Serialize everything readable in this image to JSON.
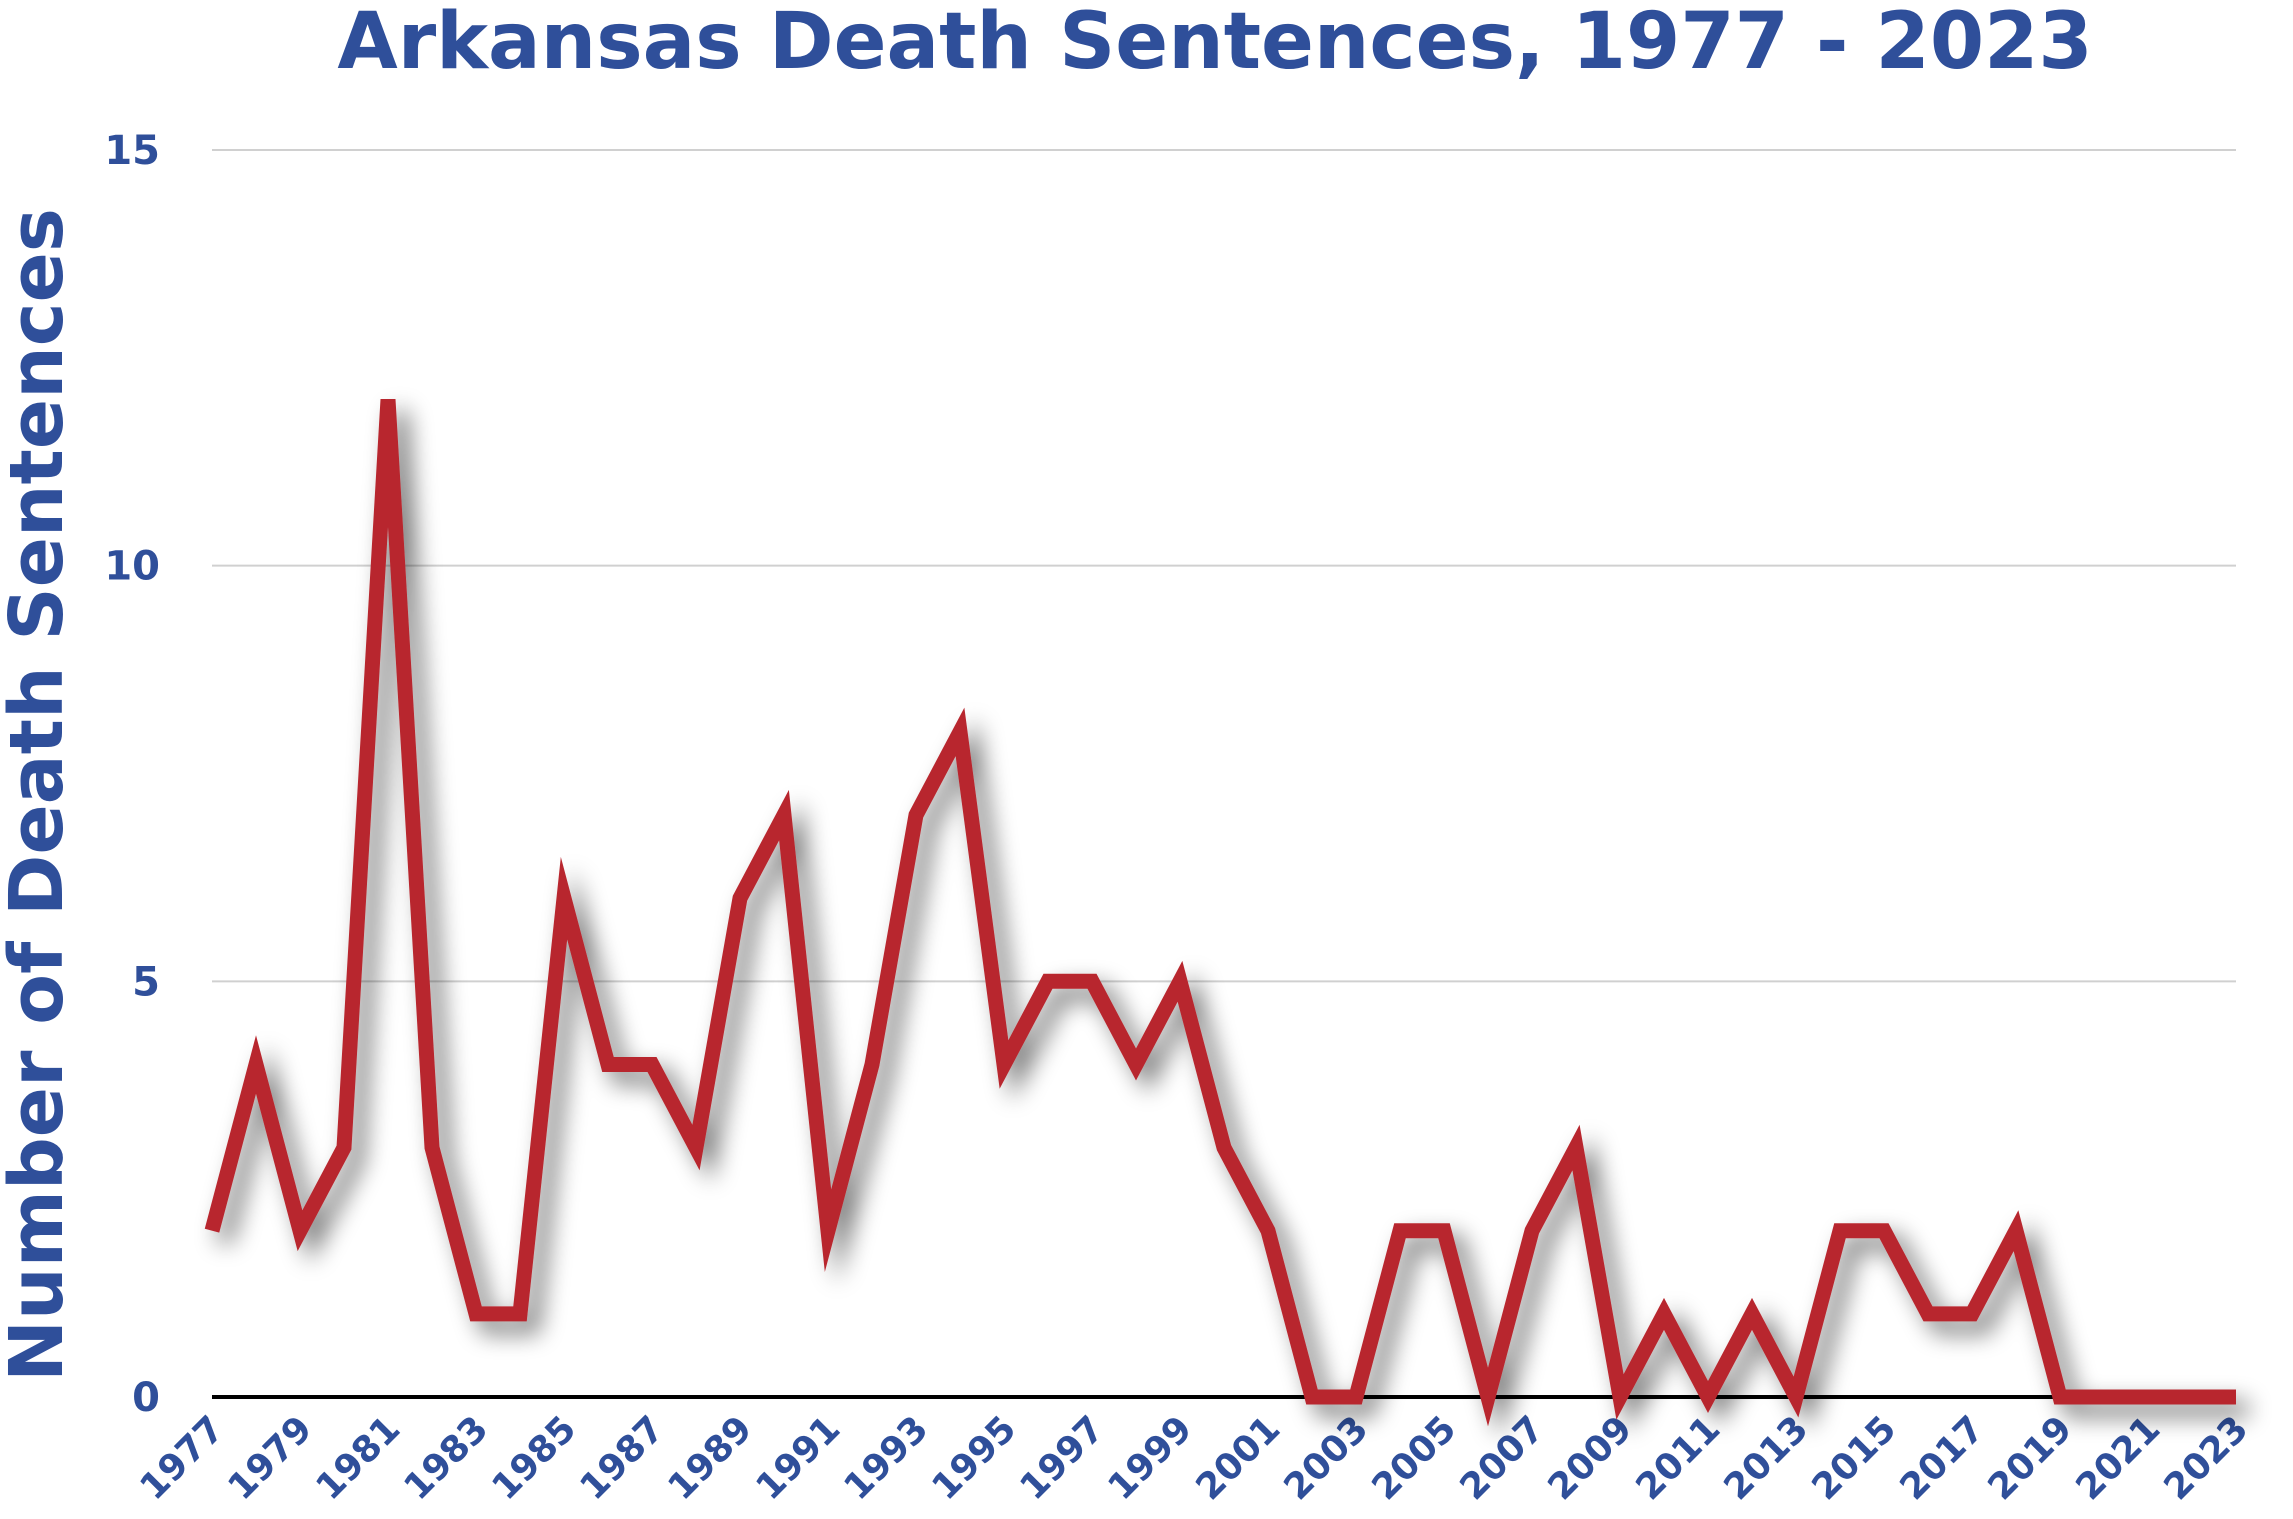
{
  "chart_data": {
    "type": "line",
    "title": "Arkansas Death Sentences, 1977 - 2023",
    "xlabel": "",
    "ylabel": "Number of Death Sentences",
    "ylim": [
      0,
      15
    ],
    "yticks": [
      "0",
      "5",
      "10",
      "15"
    ],
    "grid": true,
    "x": [
      1977,
      1978,
      1979,
      1980,
      1981,
      1982,
      1983,
      1984,
      1985,
      1986,
      1987,
      1988,
      1989,
      1990,
      1991,
      1992,
      1993,
      1994,
      1995,
      1996,
      1997,
      1998,
      1999,
      2000,
      2001,
      2002,
      2003,
      2004,
      2005,
      2006,
      2007,
      2008,
      2009,
      2010,
      2011,
      2012,
      2013,
      2014,
      2015,
      2016,
      2017,
      2018,
      2019,
      2020,
      2021,
      2022,
      2023
    ],
    "xtick_labels": [
      "1977",
      "1979",
      "1981",
      "1983",
      "1985",
      "1987",
      "1989",
      "1991",
      "1993",
      "1995",
      "1997",
      "1999",
      "2001",
      "2003",
      "2005",
      "2007",
      "2009",
      "2011",
      "2013",
      "2015",
      "2017",
      "2019",
      "2021",
      "2023"
    ],
    "series": [
      {
        "name": "",
        "color": "#b8282f",
        "values": [
          2,
          4,
          2,
          3,
          12,
          3,
          1,
          1,
          6,
          4,
          4,
          3,
          6,
          7,
          2,
          4,
          7,
          8,
          4,
          5,
          5,
          4,
          5,
          3,
          2,
          0,
          0,
          2,
          2,
          0,
          2,
          3,
          0,
          1,
          0,
          1,
          0,
          2,
          2,
          1,
          1,
          2,
          0,
          0,
          0,
          0,
          0
        ]
      }
    ],
    "colors": {
      "text": "#2f4f9a",
      "grid": "#d0d0d0",
      "baseline": "#000000",
      "line": "#b8282f"
    }
  }
}
